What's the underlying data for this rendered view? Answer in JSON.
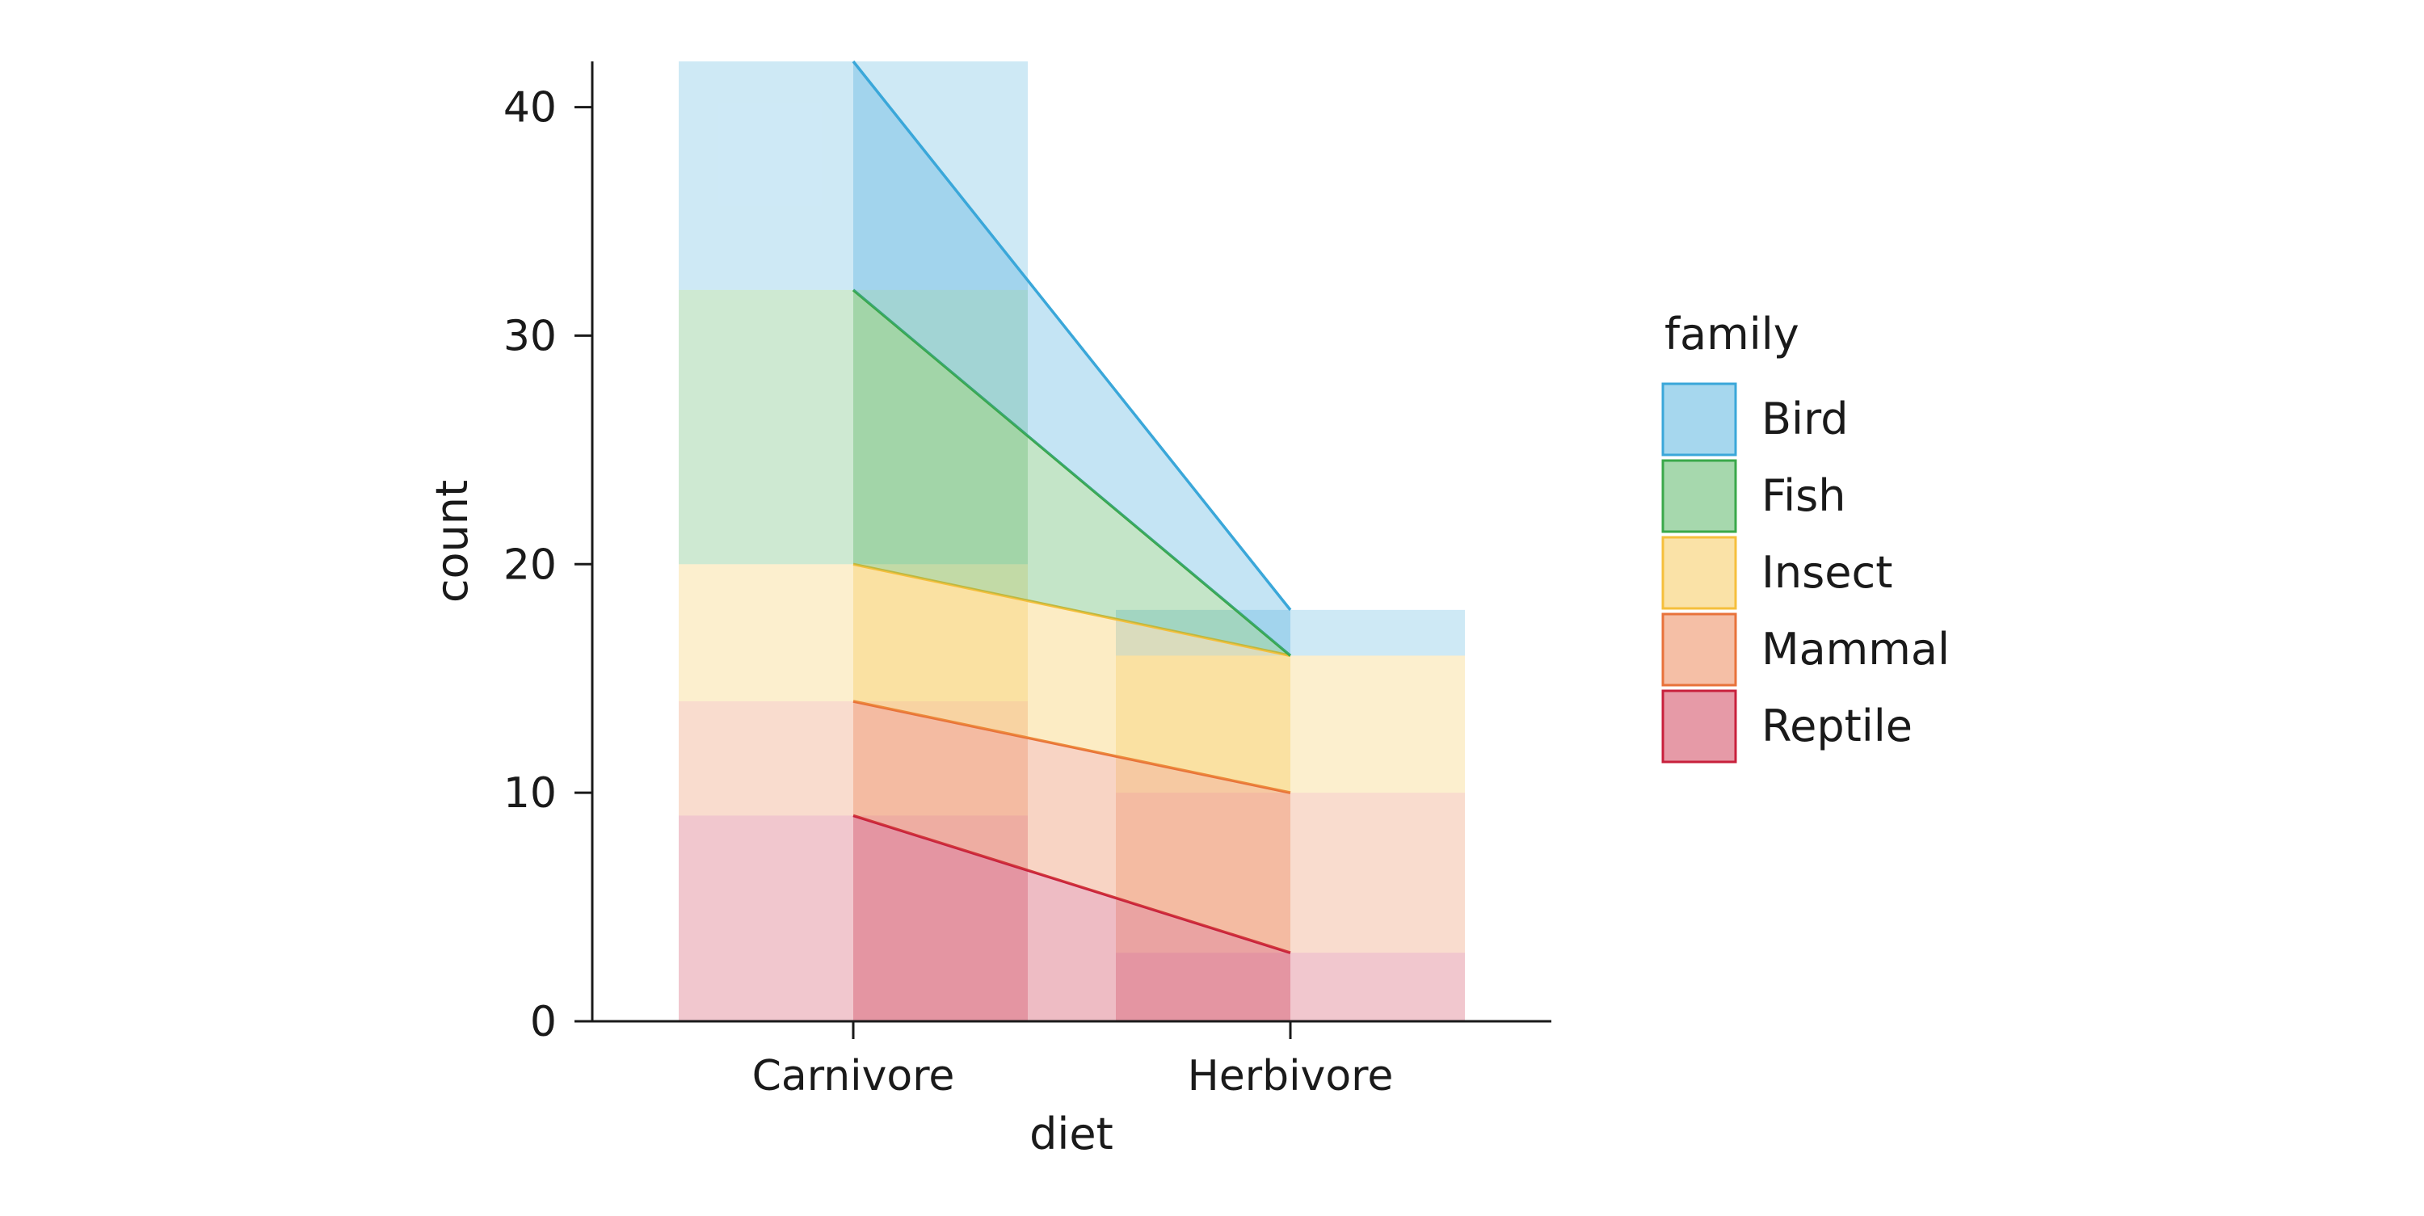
{
  "chart_data": {
    "type": "area",
    "title": "",
    "xlabel": "diet",
    "ylabel": "count",
    "categories": [
      "Carnivore",
      "Herbivore"
    ],
    "ylim": [
      0,
      42
    ],
    "yticks": [
      0,
      10,
      20,
      30,
      40
    ],
    "stacked": true,
    "grid": false,
    "legend": {
      "title": "family",
      "placement": "right"
    },
    "series": [
      {
        "name": "Reptile",
        "values": [
          9,
          3
        ],
        "color": "#c8203c"
      },
      {
        "name": "Mammal",
        "values": [
          5,
          7
        ],
        "color": "#e8723a"
      },
      {
        "name": "Insect",
        "values": [
          6,
          6
        ],
        "color": "#f5bf3c"
      },
      {
        "name": "Fish",
        "values": [
          12,
          0
        ],
        "color": "#3aa84a"
      },
      {
        "name": "Bird",
        "values": [
          10,
          2
        ],
        "color": "#3aa7d9"
      }
    ],
    "legend_order": [
      "Bird",
      "Fish",
      "Insect",
      "Mammal",
      "Reptile"
    ]
  }
}
